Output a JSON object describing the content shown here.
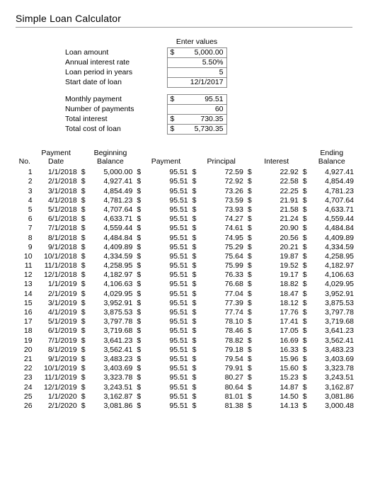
{
  "title": "Simple Loan Calculator",
  "inputs_header": "Enter values",
  "inputs": {
    "loan_amount": {
      "label": "Loan amount",
      "value": "5,000.00",
      "currency": "$"
    },
    "annual_rate": {
      "label": "Annual interest rate",
      "value": "5.50%"
    },
    "loan_period": {
      "label": "Loan period in years",
      "value": "5"
    },
    "start_date": {
      "label": "Start date of loan",
      "value": "12/1/2017"
    }
  },
  "summary": {
    "monthly_payment": {
      "label": "Monthly payment",
      "value": "95.51",
      "currency": "$"
    },
    "num_payments": {
      "label": "Number of payments",
      "value": "60"
    },
    "total_interest": {
      "label": "Total interest",
      "value": "730.35",
      "currency": "$"
    },
    "total_cost": {
      "label": "Total cost of loan",
      "value": "5,730.35",
      "currency": "$"
    }
  },
  "columns": {
    "no": "No.",
    "date_l1": "Payment",
    "date_l2": "Date",
    "beg_l1": "Beginning",
    "beg_l2": "Balance",
    "payment": "Payment",
    "principal": "Principal",
    "interest": "Interest",
    "end_l1": "Ending",
    "end_l2": "Balance"
  },
  "currency_symbol": "$",
  "rows": [
    {
      "no": 1,
      "date": "1/1/2018",
      "beg": "5,000.00",
      "pay": "95.51",
      "prin": "72.59",
      "int": "22.92",
      "end": "4,927.41"
    },
    {
      "no": 2,
      "date": "2/1/2018",
      "beg": "4,927.41",
      "pay": "95.51",
      "prin": "72.92",
      "int": "22.58",
      "end": "4,854.49"
    },
    {
      "no": 3,
      "date": "3/1/2018",
      "beg": "4,854.49",
      "pay": "95.51",
      "prin": "73.26",
      "int": "22.25",
      "end": "4,781.23"
    },
    {
      "no": 4,
      "date": "4/1/2018",
      "beg": "4,781.23",
      "pay": "95.51",
      "prin": "73.59",
      "int": "21.91",
      "end": "4,707.64"
    },
    {
      "no": 5,
      "date": "5/1/2018",
      "beg": "4,707.64",
      "pay": "95.51",
      "prin": "73.93",
      "int": "21.58",
      "end": "4,633.71"
    },
    {
      "no": 6,
      "date": "6/1/2018",
      "beg": "4,633.71",
      "pay": "95.51",
      "prin": "74.27",
      "int": "21.24",
      "end": "4,559.44"
    },
    {
      "no": 7,
      "date": "7/1/2018",
      "beg": "4,559.44",
      "pay": "95.51",
      "prin": "74.61",
      "int": "20.90",
      "end": "4,484.84"
    },
    {
      "no": 8,
      "date": "8/1/2018",
      "beg": "4,484.84",
      "pay": "95.51",
      "prin": "74.95",
      "int": "20.56",
      "end": "4,409.89"
    },
    {
      "no": 9,
      "date": "9/1/2018",
      "beg": "4,409.89",
      "pay": "95.51",
      "prin": "75.29",
      "int": "20.21",
      "end": "4,334.59"
    },
    {
      "no": 10,
      "date": "10/1/2018",
      "beg": "4,334.59",
      "pay": "95.51",
      "prin": "75.64",
      "int": "19.87",
      "end": "4,258.95"
    },
    {
      "no": 11,
      "date": "11/1/2018",
      "beg": "4,258.95",
      "pay": "95.51",
      "prin": "75.99",
      "int": "19.52",
      "end": "4,182.97"
    },
    {
      "no": 12,
      "date": "12/1/2018",
      "beg": "4,182.97",
      "pay": "95.51",
      "prin": "76.33",
      "int": "19.17",
      "end": "4,106.63"
    },
    {
      "no": 13,
      "date": "1/1/2019",
      "beg": "4,106.63",
      "pay": "95.51",
      "prin": "76.68",
      "int": "18.82",
      "end": "4,029.95"
    },
    {
      "no": 14,
      "date": "2/1/2019",
      "beg": "4,029.95",
      "pay": "95.51",
      "prin": "77.04",
      "int": "18.47",
      "end": "3,952.91"
    },
    {
      "no": 15,
      "date": "3/1/2019",
      "beg": "3,952.91",
      "pay": "95.51",
      "prin": "77.39",
      "int": "18.12",
      "end": "3,875.53"
    },
    {
      "no": 16,
      "date": "4/1/2019",
      "beg": "3,875.53",
      "pay": "95.51",
      "prin": "77.74",
      "int": "17.76",
      "end": "3,797.78"
    },
    {
      "no": 17,
      "date": "5/1/2019",
      "beg": "3,797.78",
      "pay": "95.51",
      "prin": "78.10",
      "int": "17.41",
      "end": "3,719.68"
    },
    {
      "no": 18,
      "date": "6/1/2019",
      "beg": "3,719.68",
      "pay": "95.51",
      "prin": "78.46",
      "int": "17.05",
      "end": "3,641.23"
    },
    {
      "no": 19,
      "date": "7/1/2019",
      "beg": "3,641.23",
      "pay": "95.51",
      "prin": "78.82",
      "int": "16.69",
      "end": "3,562.41"
    },
    {
      "no": 20,
      "date": "8/1/2019",
      "beg": "3,562.41",
      "pay": "95.51",
      "prin": "79.18",
      "int": "16.33",
      "end": "3,483.23"
    },
    {
      "no": 21,
      "date": "9/1/2019",
      "beg": "3,483.23",
      "pay": "95.51",
      "prin": "79.54",
      "int": "15.96",
      "end": "3,403.69"
    },
    {
      "no": 22,
      "date": "10/1/2019",
      "beg": "3,403.69",
      "pay": "95.51",
      "prin": "79.91",
      "int": "15.60",
      "end": "3,323.78"
    },
    {
      "no": 23,
      "date": "11/1/2019",
      "beg": "3,323.78",
      "pay": "95.51",
      "prin": "80.27",
      "int": "15.23",
      "end": "3,243.51"
    },
    {
      "no": 24,
      "date": "12/1/2019",
      "beg": "3,243.51",
      "pay": "95.51",
      "prin": "80.64",
      "int": "14.87",
      "end": "3,162.87"
    },
    {
      "no": 25,
      "date": "1/1/2020",
      "beg": "3,162.87",
      "pay": "95.51",
      "prin": "81.01",
      "int": "14.50",
      "end": "3,081.86"
    },
    {
      "no": 26,
      "date": "2/1/2020",
      "beg": "3,081.86",
      "pay": "95.51",
      "prin": "81.38",
      "int": "14.13",
      "end": "3,000.48"
    }
  ]
}
